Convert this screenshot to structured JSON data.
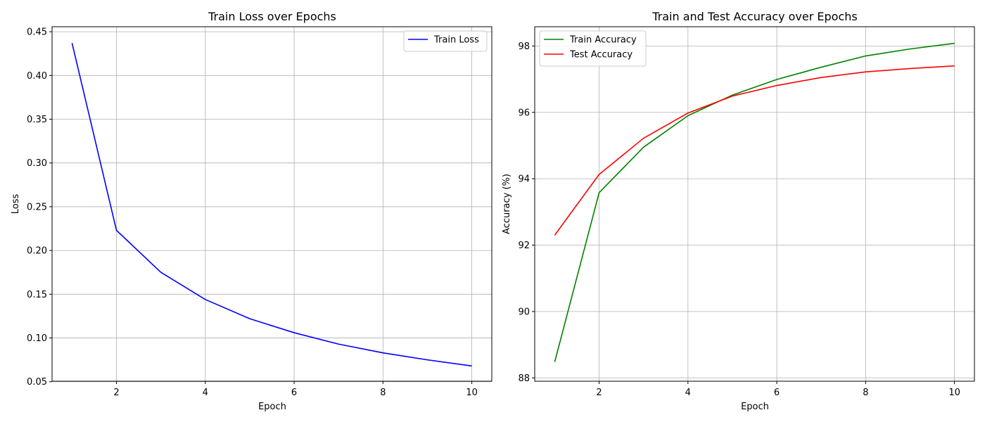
{
  "chart_data": [
    {
      "type": "line",
      "title": "Train Loss over Epochs",
      "xlabel": "Epoch",
      "ylabel": "Loss",
      "x": [
        1,
        2,
        3,
        4,
        5,
        6,
        7,
        8,
        9,
        10
      ],
      "xlim": [
        0.55,
        10.45
      ],
      "ylim": [
        0.0506,
        0.4557
      ],
      "xticks": [
        2,
        4,
        6,
        8,
        10
      ],
      "yticks": [
        0.05,
        0.1,
        0.15,
        0.2,
        0.25,
        0.3,
        0.35,
        0.4,
        0.45
      ],
      "ytick_labels": [
        "0.05",
        "0.10",
        "0.15",
        "0.20",
        "0.25",
        "0.30",
        "0.35",
        "0.40",
        "0.45"
      ],
      "grid": true,
      "legend_position": "top-right",
      "series": [
        {
          "name": "Train Loss",
          "color": "#0000ff",
          "values": [
            0.437,
            0.223,
            0.175,
            0.144,
            0.122,
            0.106,
            0.093,
            0.083,
            0.075,
            0.068
          ]
        }
      ]
    },
    {
      "type": "line",
      "title": "Train and Test Accuracy over Epochs",
      "xlabel": "Epoch",
      "ylabel": "Accuracy (%)",
      "x": [
        1,
        2,
        3,
        4,
        5,
        6,
        7,
        8,
        9,
        10
      ],
      "xlim": [
        0.55,
        10.45
      ],
      "ylim": [
        87.9,
        98.58
      ],
      "xticks": [
        2,
        4,
        6,
        8,
        10
      ],
      "yticks": [
        88,
        90,
        92,
        94,
        96,
        98
      ],
      "ytick_labels": [
        "88",
        "90",
        "92",
        "94",
        "96",
        "98"
      ],
      "grid": true,
      "legend_position": "top-left",
      "series": [
        {
          "name": "Train Accuracy",
          "color": "#008000",
          "values": [
            88.48,
            93.58,
            94.95,
            95.9,
            96.52,
            96.99,
            97.36,
            97.7,
            97.91,
            98.08
          ]
        },
        {
          "name": "Test Accuracy",
          "color": "#ff0000",
          "values": [
            92.3,
            94.13,
            95.22,
            95.98,
            96.49,
            96.81,
            97.05,
            97.22,
            97.32,
            97.4
          ]
        }
      ]
    }
  ]
}
